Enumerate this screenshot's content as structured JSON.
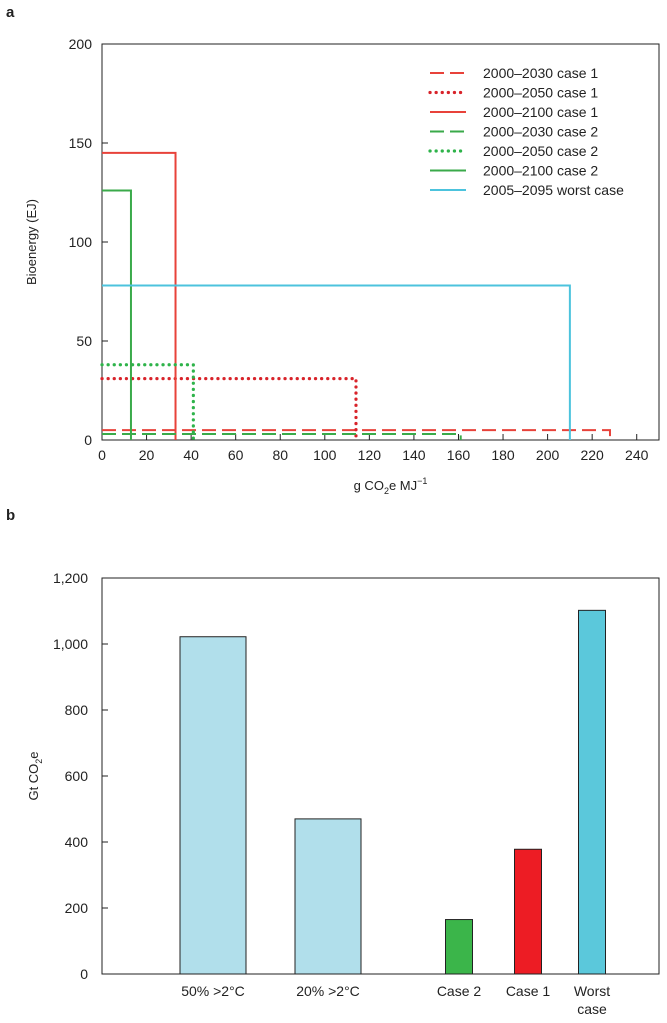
{
  "chart_data": [
    {
      "panel": "a",
      "type": "line",
      "xlabel": "g CO2e MJ-1",
      "xlabel_parts": {
        "base": "g CO",
        "sub": "2",
        "mid": "e MJ",
        "sup": "−1"
      },
      "ylabel": "Bioenergy (EJ)",
      "xlim": [
        0,
        250
      ],
      "ylim": [
        0,
        200
      ],
      "xticks": [
        0,
        20,
        40,
        60,
        80,
        100,
        120,
        140,
        160,
        180,
        200,
        220,
        240
      ],
      "yticks": [
        0,
        50,
        100,
        150,
        200
      ],
      "grid": false,
      "legend_position": "top-right",
      "series": [
        {
          "name": "2000–2030 case 1",
          "color": "#e8423a",
          "dash": "dashed",
          "x": [
            0,
            228,
            228
          ],
          "y": [
            5,
            5,
            0
          ]
        },
        {
          "name": "2000–2050 case 1",
          "color": "#d8232a",
          "dash": "dotted",
          "x": [
            0,
            114,
            114
          ],
          "y": [
            31,
            31,
            0
          ]
        },
        {
          "name": "2000–2100 case 1",
          "color": "#e8423a",
          "dash": "solid",
          "x": [
            0,
            33,
            33
          ],
          "y": [
            145,
            145,
            0
          ]
        },
        {
          "name": "2000–2030 case 2",
          "color": "#3aaa4a",
          "dash": "dashed",
          "x": [
            0,
            161,
            161
          ],
          "y": [
            3,
            3,
            0
          ]
        },
        {
          "name": "2000–2050 case 2",
          "color": "#2eb34a",
          "dash": "dotted",
          "x": [
            0,
            41,
            41
          ],
          "y": [
            38,
            38,
            0
          ]
        },
        {
          "name": "2000–2100 case 2",
          "color": "#3aaa4a",
          "dash": "solid",
          "x": [
            0,
            13,
            13
          ],
          "y": [
            126,
            126,
            0
          ]
        },
        {
          "name": "2005–2095 worst case",
          "color": "#4cc3dd",
          "dash": "solid",
          "x": [
            0,
            210,
            210
          ],
          "y": [
            78,
            78,
            0
          ]
        }
      ]
    },
    {
      "panel": "b",
      "type": "bar",
      "ylabel": "Gt CO2e",
      "ylabel_parts": {
        "base": "Gt CO",
        "sub": "2",
        "tail": "e"
      },
      "ylim": [
        0,
        1200
      ],
      "yticks": [
        0,
        200,
        400,
        600,
        800,
        1000,
        1200
      ],
      "ytick_labels": [
        "0",
        "200",
        "400",
        "600",
        "800",
        "1,000",
        "1,200"
      ],
      "grid": false,
      "categories": [
        "50% >2°C",
        "20% >2°C",
        "Case 2",
        "Case 1",
        "Worst case"
      ],
      "category_lines": [
        [
          "50% >2°C"
        ],
        [
          "20% >2°C"
        ],
        [
          "Case 2"
        ],
        [
          "Case 1"
        ],
        [
          "Worst",
          "case"
        ]
      ],
      "values": [
        1022,
        470,
        165,
        378,
        1102
      ],
      "colors": [
        "#b1dfeb",
        "#b1dfeb",
        "#3bb54a",
        "#ed1c24",
        "#5bc8db"
      ]
    }
  ]
}
